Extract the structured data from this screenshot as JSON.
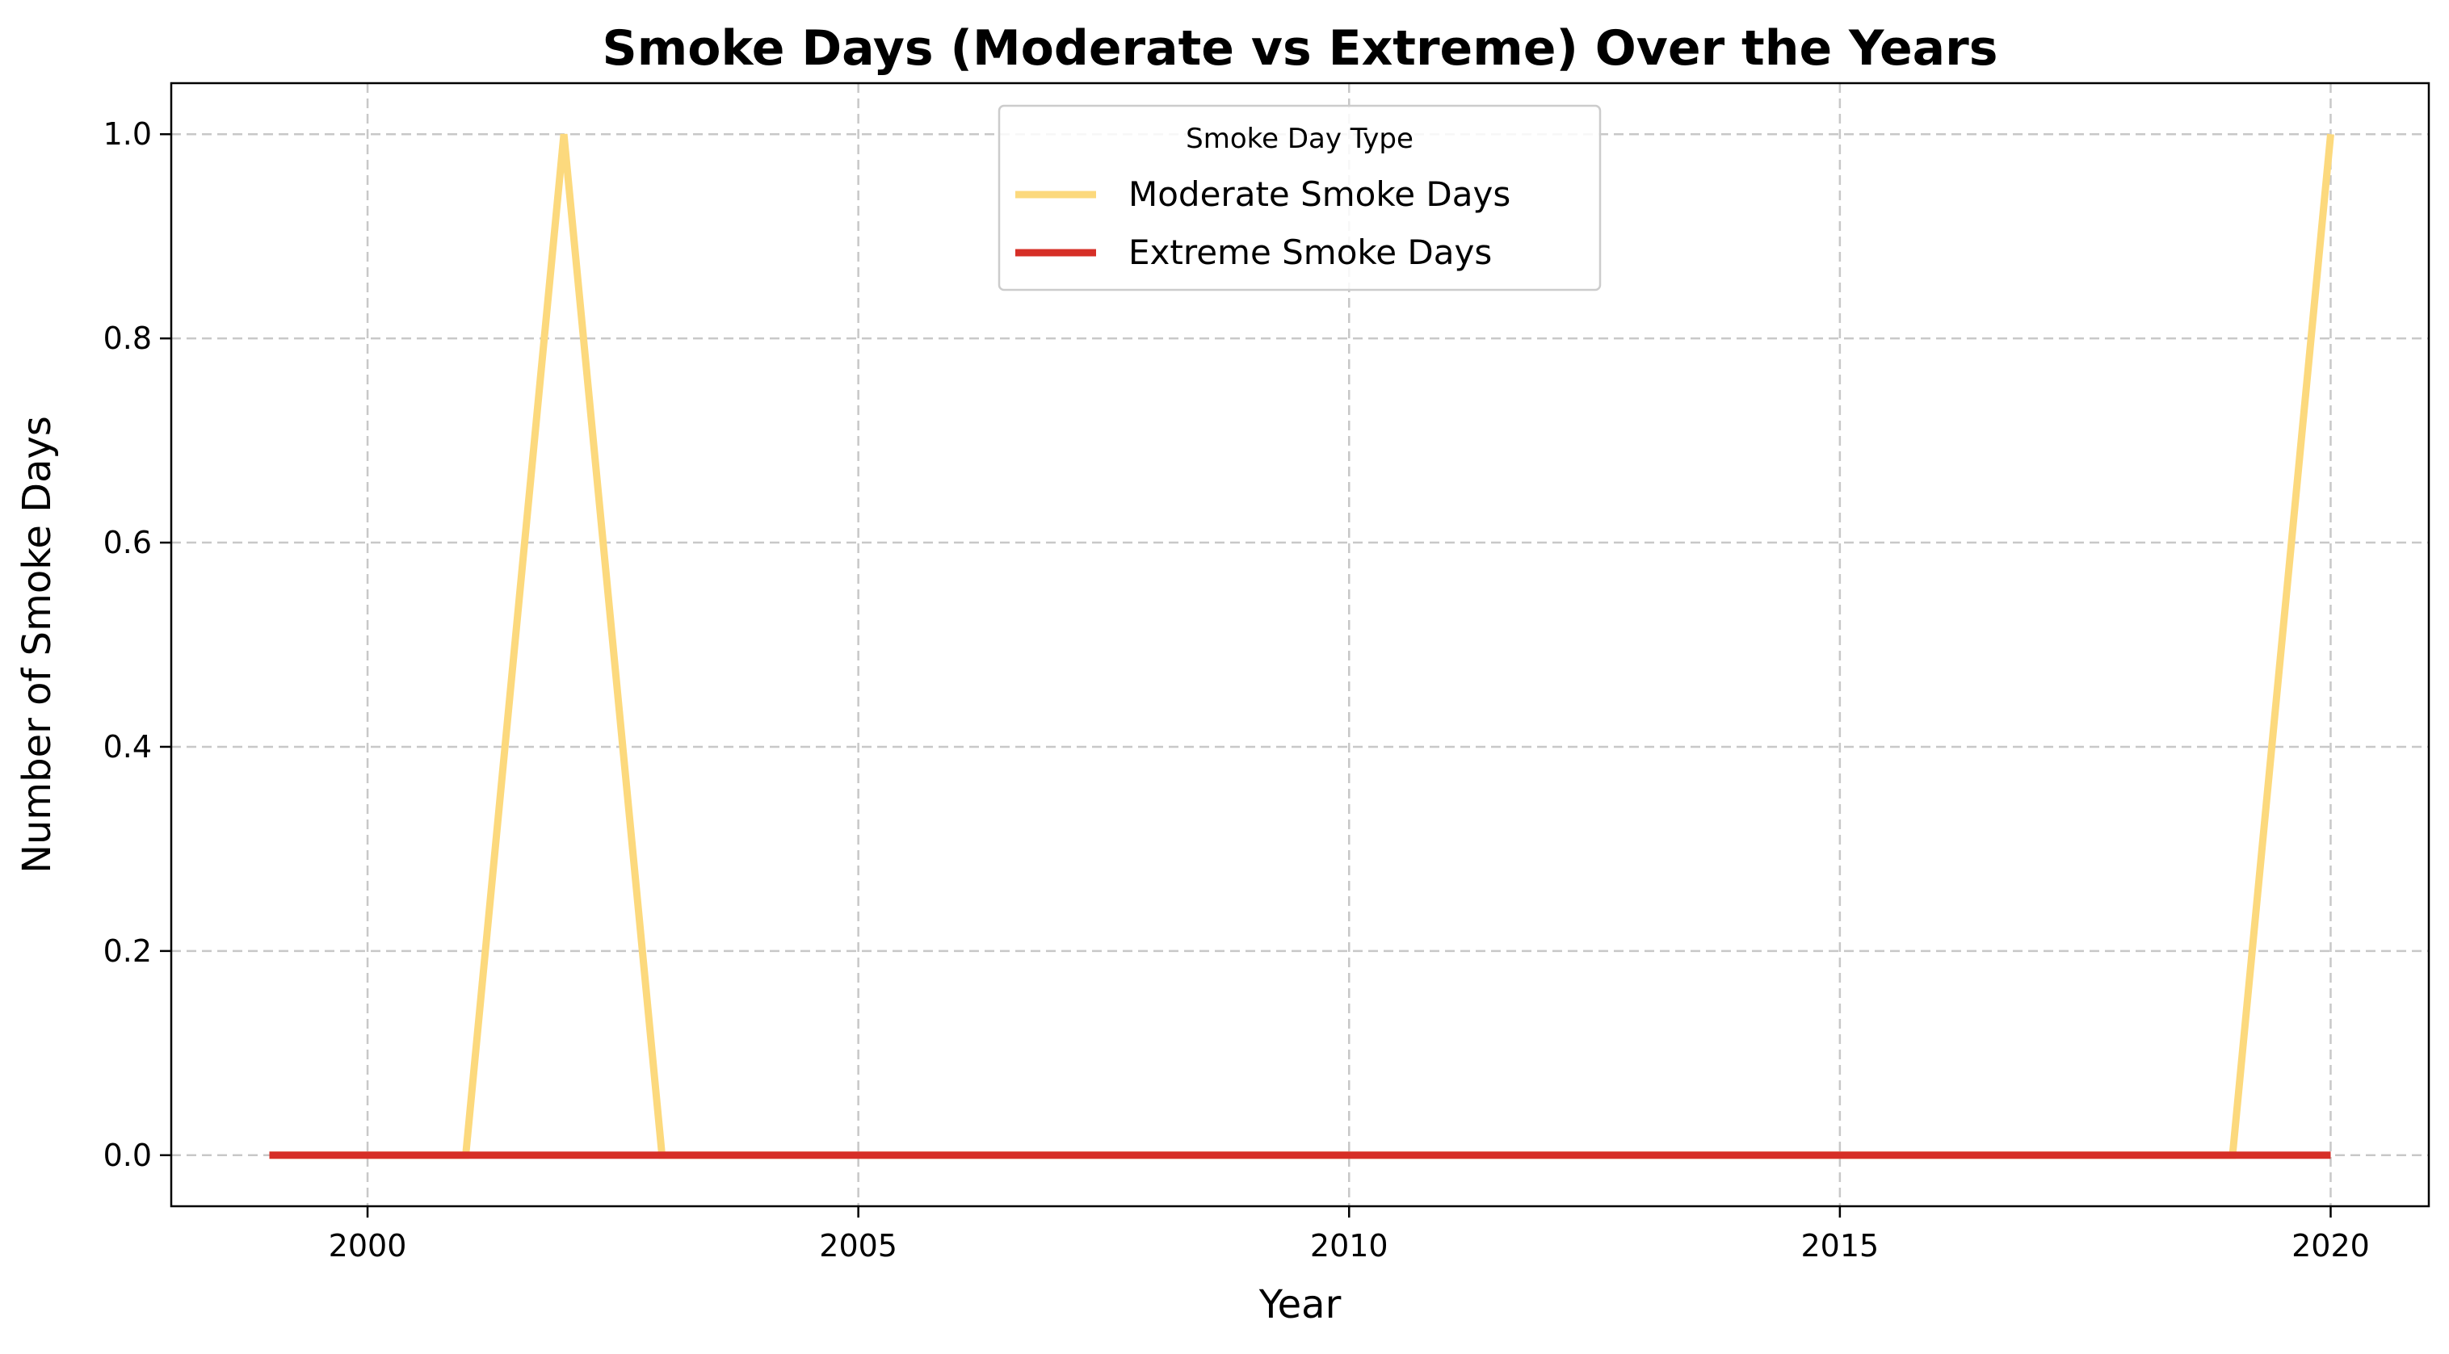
{
  "chart_data": {
    "type": "line",
    "title": "Smoke Days (Moderate vs Extreme) Over the Years",
    "xlabel": "Year",
    "ylabel": "Number of Smoke Days",
    "xlim": [
      1998,
      2021
    ],
    "ylim": [
      -0.05,
      1.05
    ],
    "x_ticks": [
      2000,
      2005,
      2010,
      2015,
      2020
    ],
    "x_tick_labels": [
      "2000",
      "2005",
      "2010",
      "2015",
      "2020"
    ],
    "y_ticks": [
      0.0,
      0.2,
      0.4,
      0.6,
      0.8,
      1.0
    ],
    "y_tick_labels": [
      "0.0",
      "0.2",
      "0.4",
      "0.6",
      "0.8",
      "1.0"
    ],
    "grid": true,
    "legend": {
      "title": "Smoke Day Type",
      "placement": "top-center"
    },
    "x": [
      1999,
      2000,
      2001,
      2002,
      2003,
      2004,
      2005,
      2006,
      2007,
      2008,
      2009,
      2010,
      2011,
      2012,
      2013,
      2014,
      2015,
      2016,
      2017,
      2018,
      2019,
      2020
    ],
    "series": [
      {
        "name": "Moderate Smoke Days",
        "color": "#fcd97d",
        "values": [
          0,
          0,
          0,
          1,
          0,
          0,
          0,
          0,
          0,
          0,
          0,
          0,
          0,
          0,
          0,
          0,
          0,
          0,
          0,
          0,
          0,
          1
        ]
      },
      {
        "name": "Extreme Smoke Days",
        "color": "#d62f27",
        "values": [
          0,
          0,
          0,
          0,
          0,
          0,
          0,
          0,
          0,
          0,
          0,
          0,
          0,
          0,
          0,
          0,
          0,
          0,
          0,
          0,
          0,
          0
        ]
      }
    ]
  }
}
